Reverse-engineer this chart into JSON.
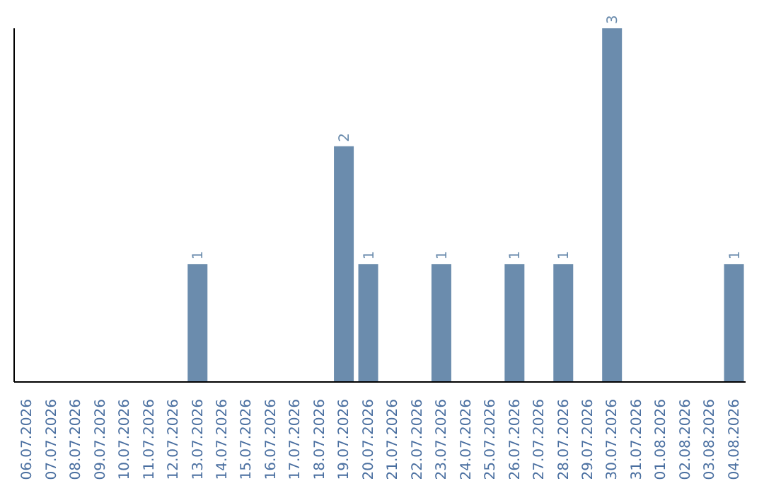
{
  "chart_data": {
    "type": "bar",
    "categories": [
      "06.07.2026",
      "07.07.2026",
      "08.07.2026",
      "09.07.2026",
      "10.07.2026",
      "11.07.2026",
      "12.07.2026",
      "13.07.2026",
      "14.07.2026",
      "15.07.2026",
      "16.07.2026",
      "17.07.2026",
      "18.07.2026",
      "19.07.2026",
      "20.07.2026",
      "21.07.2026",
      "22.07.2026",
      "23.07.2026",
      "24.07.2026",
      "25.07.2026",
      "26.07.2026",
      "27.07.2026",
      "28.07.2026",
      "29.07.2026",
      "30.07.2026",
      "31.07.2026",
      "01.08.2026",
      "02.08.2026",
      "03.08.2026",
      "04.08.2026"
    ],
    "values": [
      0,
      0,
      0,
      0,
      0,
      0,
      0,
      1,
      0,
      0,
      0,
      0,
      0,
      2,
      1,
      0,
      0,
      1,
      0,
      0,
      1,
      0,
      1,
      0,
      3,
      0,
      0,
      0,
      0,
      1
    ],
    "value_labels": [
      null,
      null,
      null,
      null,
      null,
      null,
      null,
      "1",
      null,
      null,
      null,
      null,
      null,
      "2",
      "1",
      null,
      null,
      "1",
      null,
      null,
      "1",
      null,
      "1",
      null,
      "3",
      null,
      null,
      null,
      null,
      "1"
    ],
    "color": "#6b8cad",
    "ylim": [
      0,
      3
    ],
    "tick_labels": "x",
    "grid": false,
    "legend": false
  }
}
